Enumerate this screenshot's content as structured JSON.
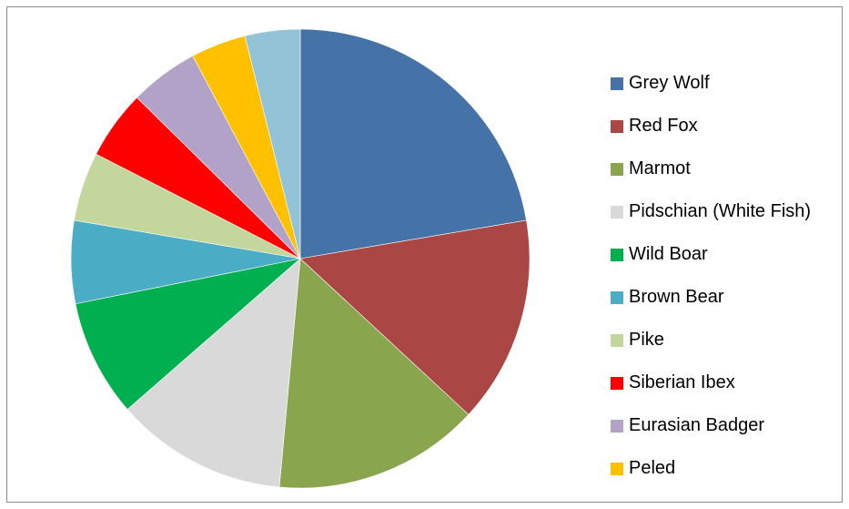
{
  "chart_data": {
    "type": "pie",
    "title": "",
    "start_angle_deg": 0,
    "direction": "clockwise",
    "series": [
      {
        "name": "Grey Wolf",
        "value": 23.0,
        "color": "#4572A7"
      },
      {
        "name": "Red Fox",
        "value": 15.0,
        "color": "#AA4643"
      },
      {
        "name": "Marmot",
        "value": 15.0,
        "color": "#89A54E"
      },
      {
        "name": "Pidschian (White Fish)",
        "value": 12.5,
        "color": "#D9D9D9"
      },
      {
        "name": "Wild Boar",
        "value": 8.5,
        "color": "#00B050"
      },
      {
        "name": "Brown Bear",
        "value": 6.0,
        "color": "#4BACC6"
      },
      {
        "name": "Pike",
        "value": 5.0,
        "color": "#C3D69B"
      },
      {
        "name": "Siberian Ibex",
        "value": 5.0,
        "color": "#FF0000"
      },
      {
        "name": "Eurasian Badger",
        "value": 5.0,
        "color": "#B2A2C7"
      },
      {
        "name": "Peled",
        "value": 4.0,
        "color": "#FFC000"
      },
      {
        "name": "",
        "value": 4.0,
        "color": "#93C3D6"
      }
    ],
    "legend": {
      "position": "right",
      "entries": [
        "Grey Wolf",
        "Red Fox",
        "Marmot",
        "Pidschian (White Fish)",
        "Wild Boar",
        "Brown Bear",
        "Pike",
        "Siberian Ibex",
        "Eurasian Badger",
        "Peled"
      ]
    }
  }
}
